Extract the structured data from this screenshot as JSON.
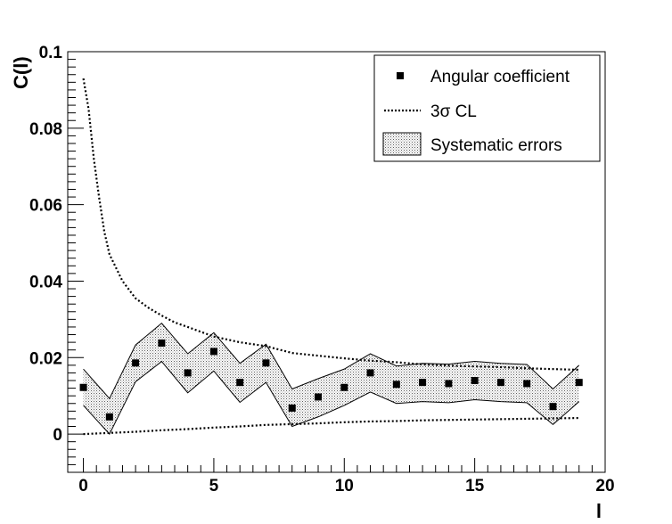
{
  "chart_data": {
    "type": "scatter",
    "xlabel": "l",
    "ylabel": "C(l)",
    "xlim": [
      -0.6,
      20
    ],
    "ylim": [
      -0.01,
      0.1
    ],
    "x_ticks": [
      0,
      5,
      10,
      15,
      20
    ],
    "x_tick_labels": [
      "0",
      "5",
      "10",
      "15",
      "20"
    ],
    "y_ticks": [
      0,
      0.02,
      0.04,
      0.06,
      0.08,
      0.1
    ],
    "y_tick_labels": [
      "0",
      "0.02",
      "0.04",
      "0.06",
      "0.08",
      "0.1"
    ],
    "grid": false,
    "legend_position": "top-right",
    "legend": [
      {
        "label": "Angular coefficient",
        "marker": "square"
      },
      {
        "label": "3σ CL",
        "marker": "dotted-line"
      },
      {
        "label": "Systematic errors",
        "marker": "hatched-box"
      }
    ],
    "series": [
      {
        "name": "Angular coefficient",
        "kind": "points",
        "x": [
          0,
          1,
          2,
          3,
          4,
          5,
          6,
          7,
          8,
          9,
          10,
          11,
          12,
          13,
          14,
          15,
          16,
          17,
          18,
          19
        ],
        "y": [
          0.0122,
          0.0045,
          0.0186,
          0.0238,
          0.016,
          0.0216,
          0.0135,
          0.0186,
          0.0068,
          0.0097,
          0.0122,
          0.016,
          0.013,
          0.0135,
          0.0132,
          0.014,
          0.0135,
          0.0132,
          0.0072,
          0.0135
        ]
      },
      {
        "name": "3σ CL",
        "kind": "dotted-line-upper",
        "x": [
          0,
          0.2,
          0.4,
          0.6,
          0.8,
          1,
          1.5,
          2,
          2.5,
          3,
          3.5,
          4,
          5,
          6,
          7,
          8,
          9,
          10,
          11,
          12,
          13,
          14,
          15,
          16,
          17,
          18,
          19
        ],
        "y": [
          0.093,
          0.085,
          0.072,
          0.062,
          0.053,
          0.047,
          0.04,
          0.0355,
          0.033,
          0.031,
          0.0292,
          0.028,
          0.0255,
          0.024,
          0.023,
          0.0212,
          0.0205,
          0.0198,
          0.0192,
          0.0188,
          0.0182,
          0.0179,
          0.0177,
          0.0175,
          0.0172,
          0.017,
          0.0168
        ]
      },
      {
        "name": "3σ CL (lower)",
        "kind": "dotted-line-lower",
        "x": [
          0,
          1,
          2,
          3,
          4,
          5,
          6,
          7,
          8,
          9,
          10,
          11,
          12,
          13,
          14,
          15,
          16,
          17,
          18,
          19
        ],
        "y": [
          0.0,
          0.0003,
          0.0006,
          0.001,
          0.0013,
          0.0017,
          0.002,
          0.0024,
          0.0026,
          0.0028,
          0.0031,
          0.0033,
          0.0034,
          0.0036,
          0.0037,
          0.0038,
          0.0039,
          0.004,
          0.0041,
          0.0042
        ]
      },
      {
        "name": "Systematic errors",
        "kind": "band",
        "x": [
          0,
          1,
          2,
          3,
          4,
          5,
          6,
          7,
          8,
          9,
          10,
          11,
          12,
          13,
          14,
          15,
          16,
          17,
          18,
          19
        ],
        "upper": [
          0.017,
          0.0093,
          0.0233,
          0.029,
          0.021,
          0.0265,
          0.0185,
          0.0235,
          0.0118,
          0.0145,
          0.017,
          0.021,
          0.0178,
          0.0185,
          0.0183,
          0.019,
          0.0185,
          0.0182,
          0.0118,
          0.018
        ],
        "lower": [
          0.0075,
          0.0,
          0.0137,
          0.019,
          0.0108,
          0.0165,
          0.0083,
          0.0135,
          0.002,
          0.0045,
          0.0075,
          0.011,
          0.008,
          0.0085,
          0.0082,
          0.009,
          0.0085,
          0.0082,
          0.0025,
          0.0085
        ]
      }
    ]
  }
}
